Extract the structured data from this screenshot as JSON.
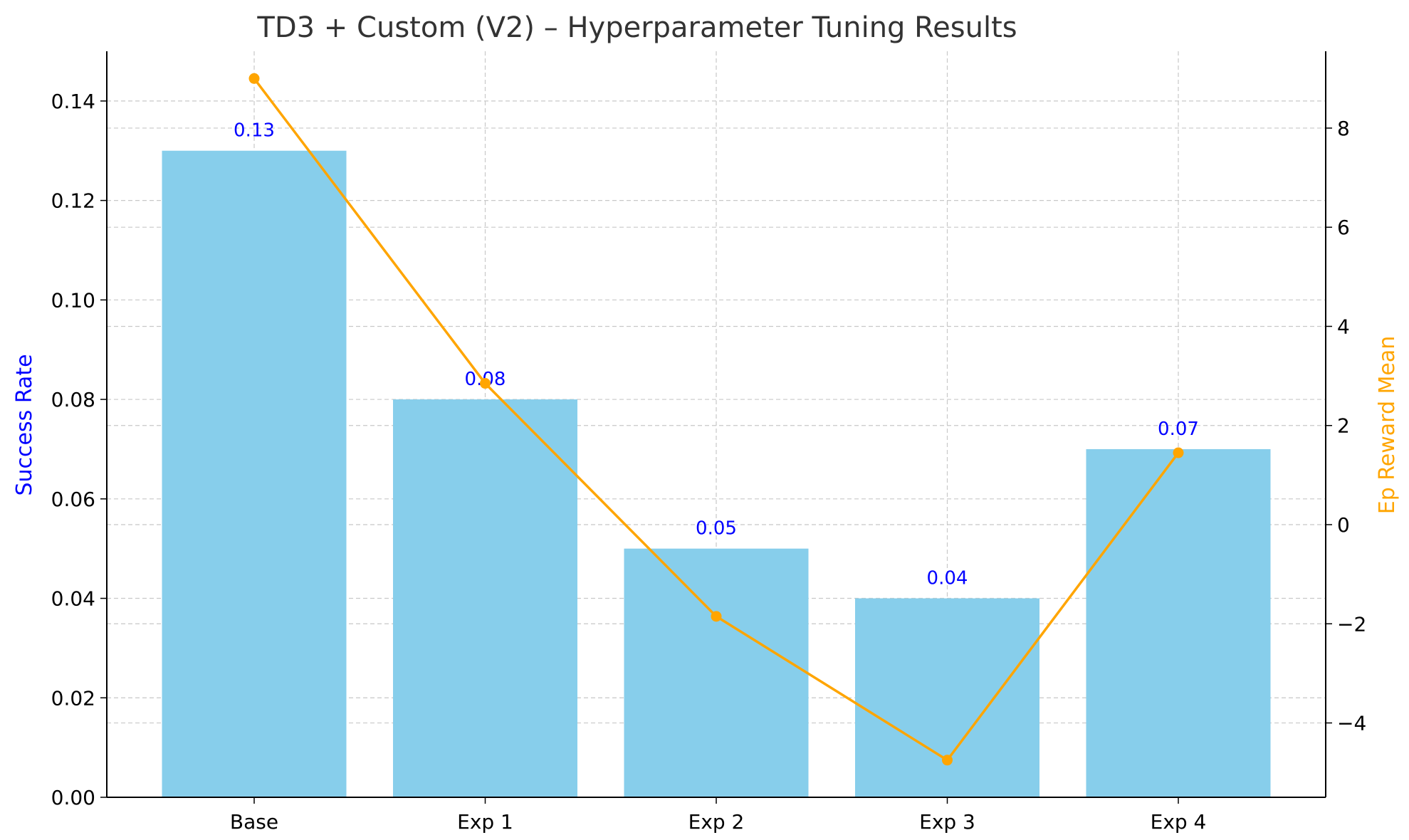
{
  "chart_data": {
    "type": "bar",
    "title": "TD3 + Custom (V2) – Hyperparameter Tuning Results",
    "categories": [
      "Base",
      "Exp 1",
      "Exp 2",
      "Exp 3",
      "Exp 4"
    ],
    "series": [
      {
        "type": "bar",
        "axis": "left",
        "values": [
          0.13,
          0.08,
          0.05,
          0.04,
          0.07
        ],
        "value_labels": [
          "0.13",
          "0.08",
          "0.05",
          "0.04",
          "0.07"
        ],
        "color": "#87CEEB",
        "label_color": "#0000FF"
      },
      {
        "type": "line",
        "axis": "right",
        "values": [
          9.0,
          2.85,
          -1.85,
          -4.75,
          1.45
        ],
        "color": "#FFA500",
        "marker": "circle"
      }
    ],
    "ylabel_left": "Success Rate",
    "ylabel_left_color": "#0000FF",
    "ylabel_right": "Ep Reward Mean",
    "ylabel_right_color": "#FFA500",
    "ylim_left": [
      0,
      0.15
    ],
    "ylim_right": [
      -5.5,
      9.55
    ],
    "yticks_left": [
      "0.00",
      "0.02",
      "0.04",
      "0.06",
      "0.08",
      "0.10",
      "0.12",
      "0.14"
    ],
    "yticks_right": [
      "−4",
      "−2",
      "0",
      "2",
      "4",
      "6",
      "8"
    ],
    "grid": true
  }
}
